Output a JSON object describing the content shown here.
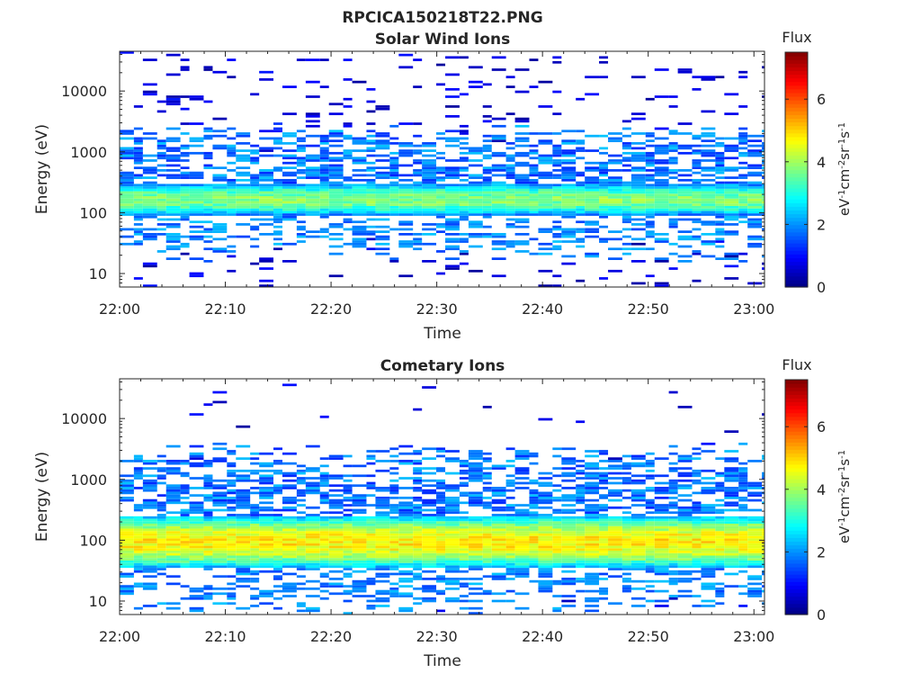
{
  "figure": {
    "title": "RPCICA150218T22.PNG"
  },
  "chart_data": [
    {
      "type": "heatmap",
      "title": "Solar Wind Ions",
      "xlabel": "Time",
      "ylabel": "Energy (eV)",
      "x_ticks": [
        "22:00",
        "22:10",
        "22:20",
        "22:30",
        "22:40",
        "22:50",
        "23:00"
      ],
      "x_range_minutes": [
        0,
        61
      ],
      "y_scale": "log",
      "y_ticks": [
        "10",
        "100",
        "1000",
        "10000"
      ],
      "y_range": [
        6,
        45000
      ],
      "colorbar": {
        "label": "Flux",
        "unit": "eV-1cm-2sr-1s-1",
        "ticks": [
          "0",
          "2",
          "4",
          "6"
        ],
        "range": [
          0,
          7.5
        ],
        "colormap": "jet"
      },
      "band": {
        "core_low_eV": 90,
        "core_high_eV": 300,
        "peak_level": 3.8,
        "top_extent_eV": 1500
      }
    },
    {
      "type": "heatmap",
      "title": "Cometary Ions",
      "xlabel": "Time",
      "ylabel": "Energy (eV)",
      "x_ticks": [
        "22:00",
        "22:10",
        "22:20",
        "22:30",
        "22:40",
        "22:50",
        "23:00"
      ],
      "x_range_minutes": [
        0,
        61
      ],
      "y_scale": "log",
      "y_ticks": [
        "10",
        "100",
        "1000",
        "10000"
      ],
      "y_range": [
        6,
        45000
      ],
      "colorbar": {
        "label": "Flux",
        "unit": "eV-1cm-2sr-1s-1",
        "ticks": [
          "0",
          "2",
          "4",
          "6"
        ],
        "range": [
          0,
          7.5
        ],
        "colormap": "jet"
      },
      "band": {
        "core_low_eV": 35,
        "core_high_eV": 250,
        "peak_level": 4.8,
        "top_extent_eV": 2000
      }
    }
  ]
}
